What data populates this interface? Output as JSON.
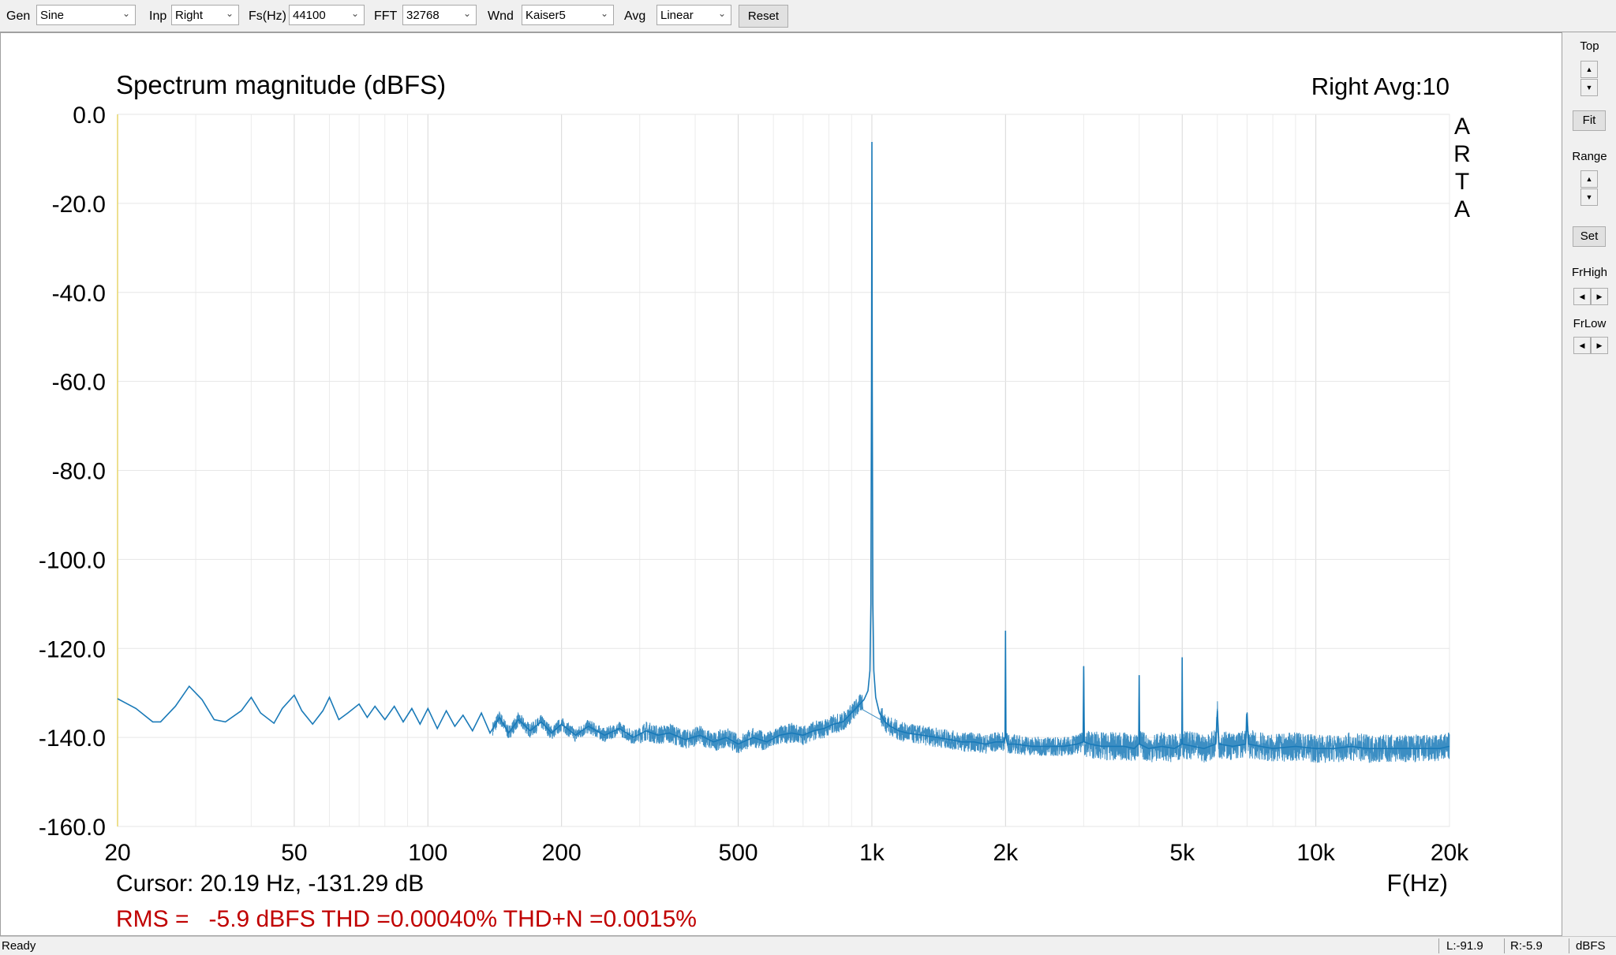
{
  "toolbar": {
    "gen_label": "Gen",
    "gen_value": "Sine",
    "inp_label": "Inp",
    "inp_value": "Right",
    "fs_label": "Fs(Hz)",
    "fs_value": "44100",
    "fft_label": "FFT",
    "fft_value": "32768",
    "wnd_label": "Wnd",
    "wnd_value": "Kaiser5",
    "avg_label": "Avg",
    "avg_value": "Linear",
    "reset_label": "Reset"
  },
  "right_panel": {
    "top_label": "Top",
    "fit_label": "Fit",
    "range_label": "Range",
    "set_label": "Set",
    "frhigh_label": "FrHigh",
    "frlow_label": "FrLow"
  },
  "icons": {
    "dropdown": "chevron-down-icon",
    "spin_up": "triangle-up-icon",
    "spin_down": "triangle-down-icon",
    "spin_left": "triangle-left-icon",
    "spin_right": "triangle-right-icon"
  },
  "chart_data": {
    "type": "line",
    "title": "Spectrum magnitude (dBFS)",
    "channel_info": "Right  Avg:10",
    "brand_letters": [
      "A",
      "R",
      "T",
      "A"
    ],
    "xlabel": "F(Hz)",
    "x_scale": "log",
    "xlim": [
      20,
      20000
    ],
    "ylim": [
      -160,
      0
    ],
    "x_ticks": [
      20,
      50,
      100,
      200,
      500,
      1000,
      2000,
      5000,
      10000,
      20000
    ],
    "x_tick_labels": [
      "20",
      "50",
      "100",
      "200",
      "500",
      "1k",
      "2k",
      "5k",
      "10k",
      "20k"
    ],
    "y_ticks": [
      0,
      -20,
      -40,
      -60,
      -80,
      -100,
      -120,
      -140,
      -160
    ],
    "y_tick_labels": [
      "0.0",
      "-20.0",
      "-40.0",
      "-60.0",
      "-80.0",
      "-100.0",
      "-120.0",
      "-140.0",
      "-160.0"
    ],
    "grid": true,
    "series": [
      {
        "color": "#1a7ab8",
        "x": [
          20,
          22,
          24,
          25,
          27,
          29,
          31,
          33,
          35,
          38,
          40,
          42,
          45,
          47,
          50,
          52,
          55,
          58,
          60,
          63,
          66,
          70,
          73,
          76,
          80,
          84,
          88,
          92,
          96,
          100,
          105,
          110,
          115,
          120,
          126,
          132,
          138,
          145,
          152,
          160,
          170,
          180,
          190,
          200,
          215,
          230,
          250,
          270,
          290,
          310,
          330,
          350,
          380,
          410,
          440,
          470,
          500,
          540,
          580,
          620,
          660,
          700,
          740,
          780,
          820,
          860,
          900,
          930,
          960,
          980,
          990,
          995,
          998,
          1000,
          1002,
          1005,
          1010,
          1020,
          1040,
          1070,
          1100,
          1150,
          1200,
          1300,
          1400,
          1500,
          1600,
          1700,
          1800,
          1900,
          1980,
          1995,
          2000,
          2005,
          2020,
          2100,
          2300,
          2500,
          2700,
          2900,
          2990,
          3000,
          3010,
          3100,
          3300,
          3500,
          3700,
          3900,
          3990,
          4000,
          4010,
          4200,
          4500,
          4800,
          4990,
          5000,
          5010,
          5300,
          5600,
          5950,
          6000,
          6050,
          6500,
          6950,
          7000,
          7050,
          7500,
          8000,
          9000,
          10000,
          11000,
          12000,
          13000,
          14000,
          15000,
          16000,
          17000,
          18000,
          19000,
          20000
        ],
        "y": [
          -131.3,
          -133.5,
          -136.5,
          -136.5,
          -133.0,
          -128.5,
          -131.5,
          -136.0,
          -136.5,
          -134.0,
          -131.0,
          -134.5,
          -136.8,
          -133.5,
          -130.5,
          -134.0,
          -137.0,
          -134.0,
          -131.0,
          -136.0,
          -134.5,
          -132.5,
          -135.5,
          -133.0,
          -136.0,
          -133.0,
          -136.5,
          -133.5,
          -137.0,
          -133.5,
          -138.0,
          -134.0,
          -137.5,
          -135.0,
          -138.5,
          -134.5,
          -139.0,
          -135.5,
          -139.0,
          -136.0,
          -138.5,
          -136.5,
          -139.0,
          -137.0,
          -139.5,
          -137.5,
          -139.5,
          -138.0,
          -140.0,
          -138.5,
          -139.5,
          -139.0,
          -140.5,
          -139.5,
          -141.0,
          -140.0,
          -141.5,
          -140.0,
          -141.0,
          -139.5,
          -139.0,
          -139.5,
          -138.5,
          -138.0,
          -137.0,
          -136.5,
          -134.5,
          -133.0,
          -131.5,
          -129.5,
          -125.0,
          -110.0,
          -60.0,
          -6.2,
          -60.0,
          -110.0,
          -125.0,
          -131.0,
          -134.5,
          -136.5,
          -137.5,
          -138.5,
          -139.0,
          -139.5,
          -140.0,
          -140.5,
          -141.0,
          -141.0,
          -141.5,
          -141.0,
          -141.0,
          -140.0,
          -116.0,
          -140.0,
          -141.5,
          -141.5,
          -142.0,
          -142.0,
          -142.0,
          -141.5,
          -141.0,
          -124.0,
          -141.0,
          -141.5,
          -142.0,
          -142.0,
          -142.0,
          -142.5,
          -141.5,
          -126.0,
          -141.5,
          -142.5,
          -142.0,
          -142.5,
          -141.5,
          -122.0,
          -141.5,
          -142.0,
          -142.5,
          -141.5,
          -134.0,
          -141.5,
          -142.0,
          -141.5,
          -134.5,
          -141.5,
          -142.0,
          -142.5,
          -142.0,
          -142.5,
          -142.5,
          -142.0,
          -142.5,
          -142.5,
          -142.5,
          -142.5,
          -142.5,
          -142.5,
          -142.5,
          -142.0
        ]
      }
    ],
    "cursor_readout": "Cursor: 20.19 Hz, -131.29 dB",
    "stats_readout": "RMS =   -5.9 dBFS THD =0.00040% THD+N =0.0015%",
    "stats_color": "#c00000"
  },
  "status": {
    "ready": "Ready",
    "left": "L:-91.9",
    "right": "R:-5.9",
    "units": "dBFS"
  }
}
